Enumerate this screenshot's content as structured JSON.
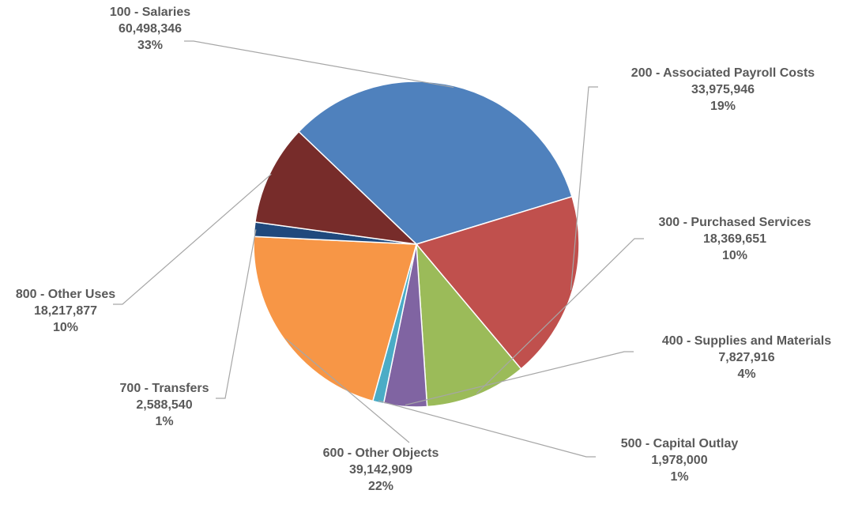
{
  "chart_data": {
    "type": "pie",
    "title": "",
    "slices": [
      {
        "name": "100 - Salaries",
        "value": 60498346,
        "value_label": "60,498,346",
        "percent_label": "33%",
        "color": "#4F81BD"
      },
      {
        "name": "200 - Associated Payroll Costs",
        "value": 33975946,
        "value_label": "33,975,946",
        "percent_label": "19%",
        "color": "#C0504D"
      },
      {
        "name": "300 - Purchased Services",
        "value": 18369651,
        "value_label": "18,369,651",
        "percent_label": "10%",
        "color": "#9BBB59"
      },
      {
        "name": "400 - Supplies and Materials",
        "value": 7827916,
        "value_label": "7,827,916",
        "percent_label": "4%",
        "color": "#8064A2"
      },
      {
        "name": "500 - Capital Outlay",
        "value": 1978000,
        "value_label": "1,978,000",
        "percent_label": "1%",
        "color": "#4BACC6"
      },
      {
        "name": "600 - Other Objects",
        "value": 39142909,
        "value_label": "39,142,909",
        "percent_label": "22%",
        "color": "#F79646"
      },
      {
        "name": "700 - Transfers",
        "value": 2588540,
        "value_label": "2,588,540",
        "percent_label": "1%",
        "color": "#1F497D"
      },
      {
        "name": "800 - Other Uses",
        "value": 18217877,
        "value_label": "18,217,877",
        "percent_label": "10%",
        "color": "#772C2A"
      }
    ],
    "label_color": "#595959",
    "leader_line_color": "#A6A6A6"
  }
}
